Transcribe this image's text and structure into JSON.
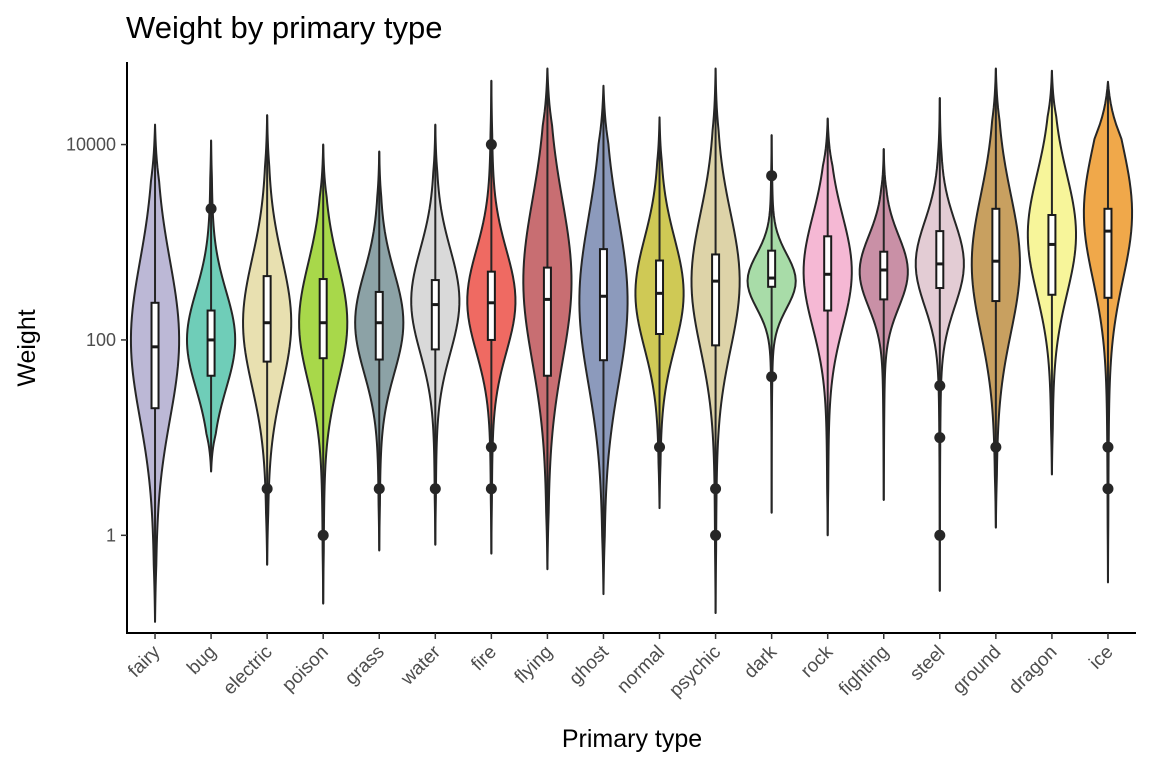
{
  "chart_data": {
    "type": "violin",
    "title": "Weight by primary type",
    "xlabel": "Primary type",
    "ylabel": "Weight",
    "y_scale": "log10",
    "ylim": [
      0.1,
      70000
    ],
    "y_ticks": [
      1,
      100,
      10000
    ],
    "y_tick_labels": [
      "1",
      "100",
      "10000"
    ],
    "grid": false,
    "legend": "none",
    "series": [
      {
        "category": "fairy",
        "color": "#bcb8d6",
        "min": 0.13,
        "max": 16000,
        "q1": 20,
        "median": 85,
        "q3": 240,
        "peak": 100,
        "outliers": []
      },
      {
        "category": "bug",
        "color": "#6fcdb8",
        "min": 4.5,
        "max": 11000,
        "q1": 43,
        "median": 100,
        "q3": 200,
        "peak": 100,
        "outliers": [
          2200
        ]
      },
      {
        "category": "electric",
        "color": "#e8e0b0",
        "min": 0.5,
        "max": 20000,
        "q1": 60,
        "median": 150,
        "q3": 450,
        "peak": 150,
        "outliers": [
          3
        ]
      },
      {
        "category": "poison",
        "color": "#a8d84a",
        "min": 0.2,
        "max": 10000,
        "q1": 65,
        "median": 150,
        "q3": 420,
        "peak": 150,
        "outliers": [
          1
        ]
      },
      {
        "category": "grass",
        "color": "#8ca2a6",
        "min": 0.7,
        "max": 8500,
        "q1": 63,
        "median": 150,
        "q3": 310,
        "peak": 150,
        "outliers": [
          3
        ]
      },
      {
        "category": "water",
        "color": "#d9d9d9",
        "min": 0.8,
        "max": 16000,
        "q1": 80,
        "median": 230,
        "q3": 410,
        "peak": 250,
        "outliers": [
          3
        ]
      },
      {
        "category": "fire",
        "color": "#ef6a62",
        "min": 0.65,
        "max": 45000,
        "q1": 100,
        "median": 240,
        "q3": 500,
        "peak": 250,
        "outliers": [
          10000,
          8,
          3
        ]
      },
      {
        "category": "flying",
        "color": "#c86e72",
        "min": 0.45,
        "max": 60000,
        "q1": 43,
        "median": 260,
        "q3": 550,
        "peak": 400,
        "outliers": []
      },
      {
        "category": "ghost",
        "color": "#8c9abc",
        "min": 0.25,
        "max": 40000,
        "q1": 62,
        "median": 280,
        "q3": 850,
        "peak": 250,
        "outliers": []
      },
      {
        "category": "normal",
        "color": "#cfc955",
        "min": 1.9,
        "max": 19000,
        "q1": 115,
        "median": 300,
        "q3": 650,
        "peak": 300,
        "outliers": [
          8
        ]
      },
      {
        "category": "psychic",
        "color": "#ddd3a8",
        "min": 0.16,
        "max": 60000,
        "q1": 88,
        "median": 400,
        "q3": 750,
        "peak": 400,
        "outliers": [
          3,
          1
        ]
      },
      {
        "category": "dark",
        "color": "#a8dca8",
        "min": 1.7,
        "max": 12500,
        "q1": 350,
        "median": 430,
        "q3": 820,
        "peak": 400,
        "outliers": [
          4800,
          42
        ]
      },
      {
        "category": "rock",
        "color": "#f5b8d4",
        "min": 1,
        "max": 18500,
        "q1": 200,
        "median": 470,
        "q3": 1150,
        "peak": 500,
        "outliers": []
      },
      {
        "category": "fighting",
        "color": "#c990a6",
        "min": 2.3,
        "max": 9000,
        "q1": 260,
        "median": 520,
        "q3": 800,
        "peak": 500,
        "outliers": []
      },
      {
        "category": "steel",
        "color": "#e3ccd4",
        "min": 0.27,
        "max": 30000,
        "q1": 340,
        "median": 600,
        "q3": 1300,
        "peak": 600,
        "outliers": [
          34,
          10,
          1
        ]
      },
      {
        "category": "ground",
        "color": "#c8a060",
        "min": 1.2,
        "max": 60000,
        "q1": 250,
        "median": 640,
        "q3": 2200,
        "peak": 600,
        "outliers": [
          8
        ]
      },
      {
        "category": "dragon",
        "color": "#f7f59a",
        "min": 4.2,
        "max": 57000,
        "q1": 290,
        "median": 950,
        "q3": 1900,
        "peak": 1200,
        "outliers": []
      },
      {
        "category": "ice",
        "color": "#f0a84a",
        "min": 0.33,
        "max": 44000,
        "q1": 270,
        "median": 1300,
        "q3": 2200,
        "peak": 2000,
        "outliers": [
          8,
          3
        ]
      }
    ]
  }
}
